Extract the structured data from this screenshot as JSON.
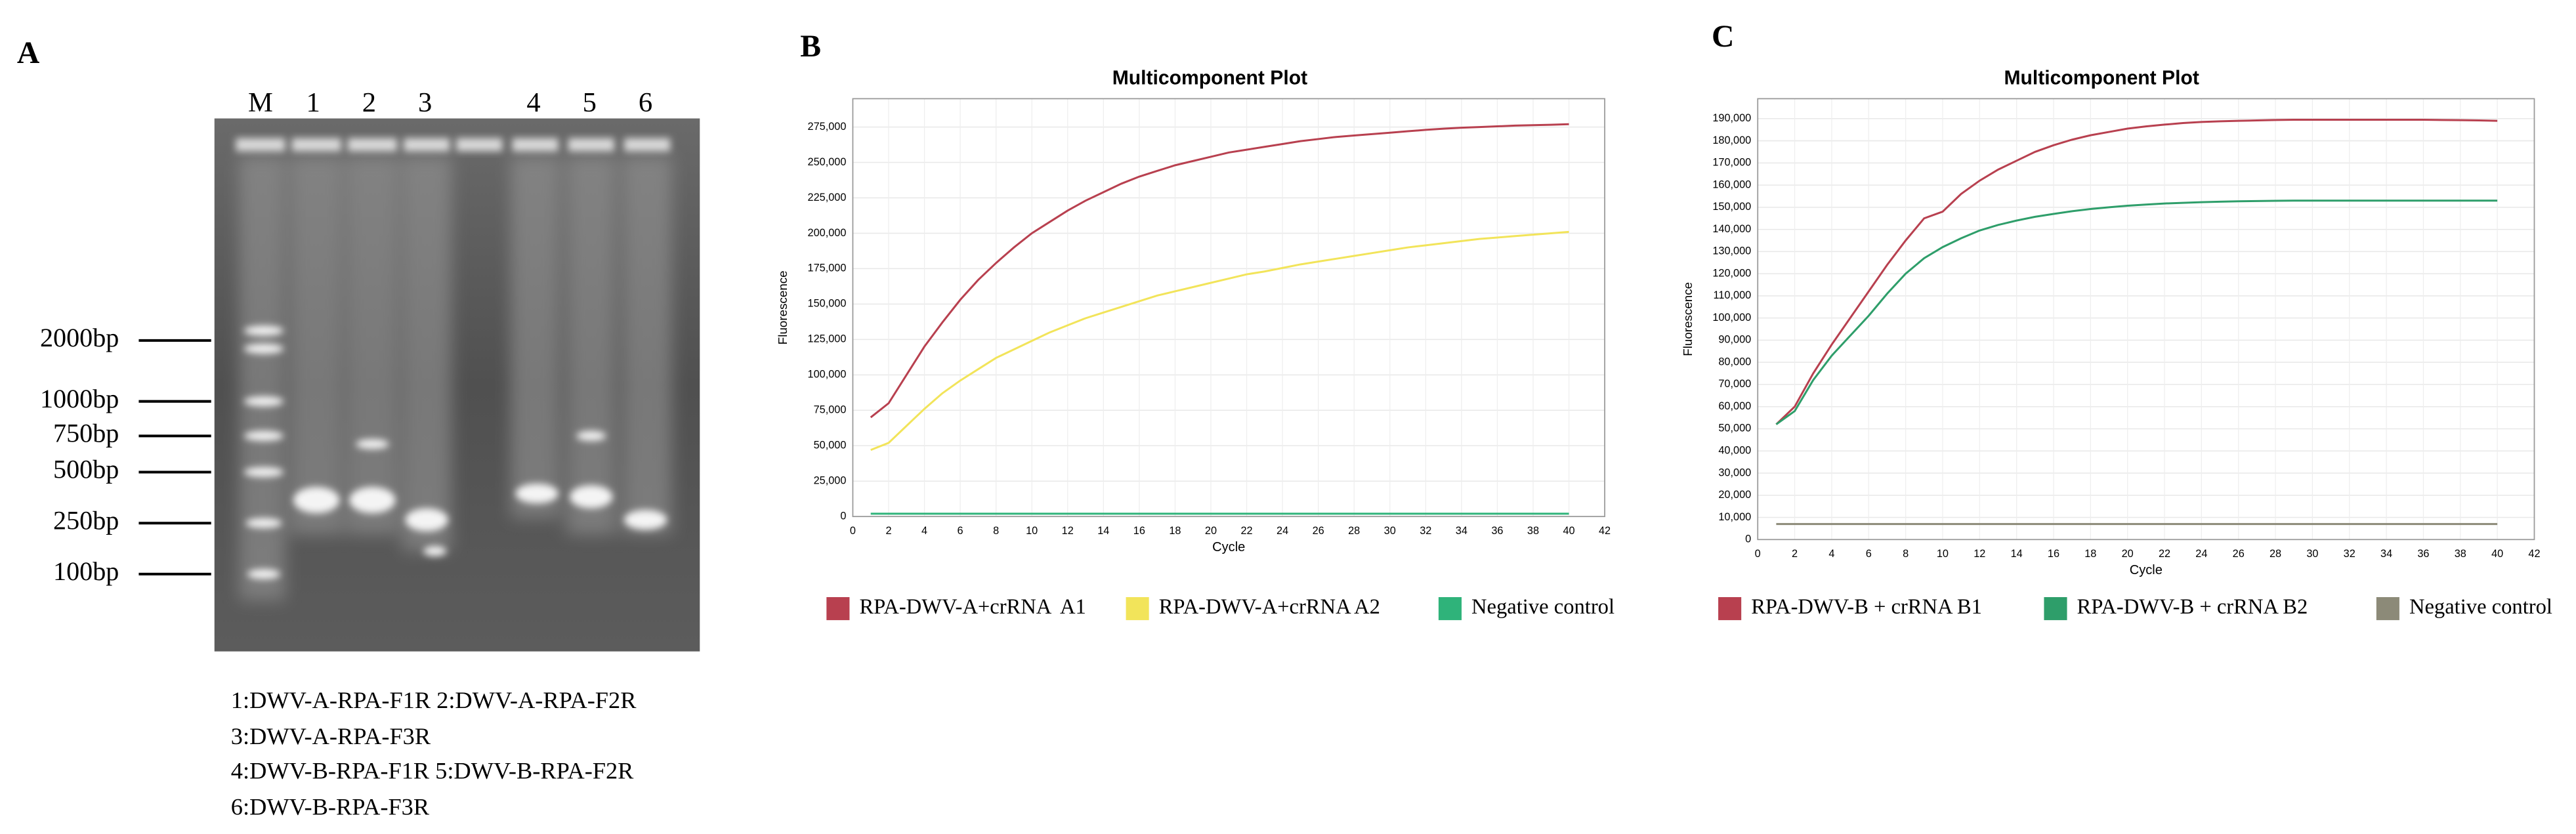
{
  "panel_labels": [
    "A",
    "B",
    "C"
  ],
  "gel": {
    "lanes": [
      "M",
      "1",
      "2",
      "3",
      "4",
      "5",
      "6"
    ],
    "ladder": [
      "2000bp",
      "1000bp",
      "750bp",
      "500bp",
      "250bp",
      "100bp"
    ],
    "legend": [
      "1:DWV-A-RPA-F1R 2:DWV-A-RPA-F2R",
      "3:DWV-A-RPA-F3R",
      "4:DWV-B-RPA-F1R 5:DWV-B-RPA-F2R",
      "6:DWV-B-RPA-F3R"
    ]
  },
  "chart_data": [
    {
      "type": "line",
      "title": "Multicomponent Plot",
      "x_label": "Cycle",
      "y_label": "Fluorescence",
      "grid": true,
      "x": [
        1,
        2,
        3,
        4,
        5,
        6,
        7,
        8,
        9,
        10,
        11,
        12,
        13,
        14,
        15,
        16,
        17,
        18,
        19,
        20,
        21,
        22,
        23,
        24,
        25,
        26,
        27,
        28,
        29,
        30,
        31,
        32,
        33,
        34,
        35,
        36,
        37,
        38,
        39,
        40
      ],
      "xlim": [
        0,
        42
      ],
      "xticks": [
        0,
        2,
        4,
        6,
        8,
        10,
        12,
        14,
        16,
        18,
        20,
        22,
        24,
        26,
        28,
        30,
        32,
        34,
        36,
        38,
        40,
        42
      ],
      "ylim": [
        0,
        295000
      ],
      "yticks": [
        0,
        {
          "value": 25000,
          "label": "25,000"
        },
        {
          "value": 50000,
          "label": "50,000"
        },
        {
          "value": 75000,
          "label": "75,000"
        },
        {
          "value": 100000,
          "label": "100,000"
        },
        {
          "value": 125000,
          "label": "125,000"
        },
        {
          "value": 150000,
          "label": "150,000"
        },
        {
          "value": 175000,
          "label": "175,000"
        },
        {
          "value": 200000,
          "label": "200,000"
        },
        {
          "value": 225000,
          "label": "225,000"
        },
        {
          "value": 250000,
          "label": "250,000"
        },
        {
          "value": 275000,
          "label": "275,000"
        }
      ],
      "series": [
        {
          "name": "RPA-DWV-A+crRNA  A1",
          "color": "#b8404f",
          "values": [
            70000,
            80000,
            100000,
            120000,
            137000,
            153000,
            167000,
            179000,
            190000,
            200000,
            208000,
            216000,
            223000,
            229000,
            235000,
            240000,
            244000,
            248000,
            251000,
            254000,
            257000,
            259000,
            261000,
            263000,
            265000,
            266500,
            268000,
            269000,
            270000,
            271000,
            272000,
            273000,
            273800,
            274500,
            275000,
            275500,
            276000,
            276300,
            276600,
            277000
          ]
        },
        {
          "name": "RPA-DWV-A+crRNA A2",
          "color": "#f2e45a",
          "values": [
            47000,
            52000,
            64000,
            76000,
            87000,
            96000,
            104000,
            112000,
            118000,
            124000,
            130000,
            135000,
            140000,
            144000,
            148000,
            152000,
            156000,
            159000,
            162000,
            165000,
            168000,
            171000,
            173000,
            175500,
            178000,
            180000,
            182000,
            184000,
            186000,
            188000,
            190000,
            191500,
            193000,
            194500,
            196000,
            197000,
            198000,
            199000,
            200000,
            201000
          ]
        },
        {
          "name": "Negative control",
          "color": "#2fb37a",
          "values": [
            2000,
            2000,
            2000,
            2000,
            2000,
            2000,
            2000,
            2000,
            2000,
            2000,
            2000,
            2000,
            2000,
            2000,
            2000,
            2000,
            2000,
            2000,
            2000,
            2000,
            2000,
            2000,
            2000,
            2000,
            2000,
            2000,
            2000,
            2000,
            2000,
            2000,
            2000,
            2000,
            2000,
            2000,
            2000,
            2000,
            2000,
            2000,
            2000,
            2000
          ]
        }
      ]
    },
    {
      "type": "line",
      "title": "Multicomponent Plot",
      "x_label": "Cycle",
      "y_label": "Fluorescence",
      "grid": true,
      "x": [
        1,
        2,
        3,
        4,
        5,
        6,
        7,
        8,
        9,
        10,
        11,
        12,
        13,
        14,
        15,
        16,
        17,
        18,
        19,
        20,
        21,
        22,
        23,
        24,
        25,
        26,
        27,
        28,
        29,
        30,
        31,
        32,
        33,
        34,
        35,
        36,
        37,
        38,
        39,
        40
      ],
      "xlim": [
        0,
        42
      ],
      "xticks": [
        0,
        2,
        4,
        6,
        8,
        10,
        12,
        14,
        16,
        18,
        20,
        22,
        24,
        26,
        28,
        30,
        32,
        34,
        36,
        38,
        40,
        42
      ],
      "ylim": [
        0,
        199000
      ],
      "yticks": [
        0,
        {
          "value": 10000,
          "label": "10,000"
        },
        {
          "value": 20000,
          "label": "20,000"
        },
        {
          "value": 30000,
          "label": "30,000"
        },
        {
          "value": 40000,
          "label": "40,000"
        },
        {
          "value": 50000,
          "label": "50,000"
        },
        {
          "value": 60000,
          "label": "60,000"
        },
        {
          "value": 70000,
          "label": "70,000"
        },
        {
          "value": 80000,
          "label": "80,000"
        },
        {
          "value": 90000,
          "label": "90,000"
        },
        {
          "value": 100000,
          "label": "100,000"
        },
        {
          "value": 110000,
          "label": "110,000"
        },
        {
          "value": 120000,
          "label": "120,000"
        },
        {
          "value": 130000,
          "label": "130,000"
        },
        {
          "value": 140000,
          "label": "140,000"
        },
        {
          "value": 150000,
          "label": "150,000"
        },
        {
          "value": 160000,
          "label": "160,000"
        },
        {
          "value": 170000,
          "label": "170,000"
        },
        {
          "value": 180000,
          "label": "180,000"
        },
        {
          "value": 190000,
          "label": "190,000"
        }
      ],
      "series": [
        {
          "name": "RPA-DWV-B + crRNA B1",
          "color": "#b8404f",
          "values": [
            52000,
            60000,
            75000,
            88000,
            100000,
            112000,
            124000,
            135000,
            145000,
            148000,
            156000,
            162000,
            167000,
            171000,
            175000,
            178000,
            180500,
            182500,
            184000,
            185500,
            186500,
            187300,
            188000,
            188500,
            188800,
            189000,
            189200,
            189400,
            189500,
            189500,
            189500,
            189500,
            189500,
            189500,
            189500,
            189500,
            189400,
            189300,
            189200,
            189000
          ]
        },
        {
          "name": "RPA-DWV-B + crRNA B2",
          "color": "#2e9e6a",
          "values": [
            52000,
            58000,
            72000,
            83000,
            92000,
            101000,
            111000,
            120000,
            127000,
            132000,
            136000,
            139500,
            142000,
            144000,
            145700,
            147000,
            148200,
            149200,
            150000,
            150700,
            151200,
            151700,
            152000,
            152300,
            152500,
            152700,
            152800,
            152900,
            153000,
            153000,
            153000,
            153000,
            153000,
            153000,
            153000,
            153000,
            153000,
            153000,
            153000,
            153000
          ]
        },
        {
          "name": "Negative control",
          "color": "#8c8a78",
          "values": [
            7000,
            7000,
            7000,
            7000,
            7000,
            7000,
            7000,
            7000,
            7000,
            7000,
            7000,
            7000,
            7000,
            7000,
            7000,
            7000,
            7000,
            7000,
            7000,
            7000,
            7000,
            7000,
            7000,
            7000,
            7000,
            7000,
            7000,
            7000,
            7000,
            7000,
            7000,
            7000,
            7000,
            7000,
            7000,
            7000,
            7000,
            7000,
            7000,
            7000
          ]
        }
      ]
    }
  ]
}
